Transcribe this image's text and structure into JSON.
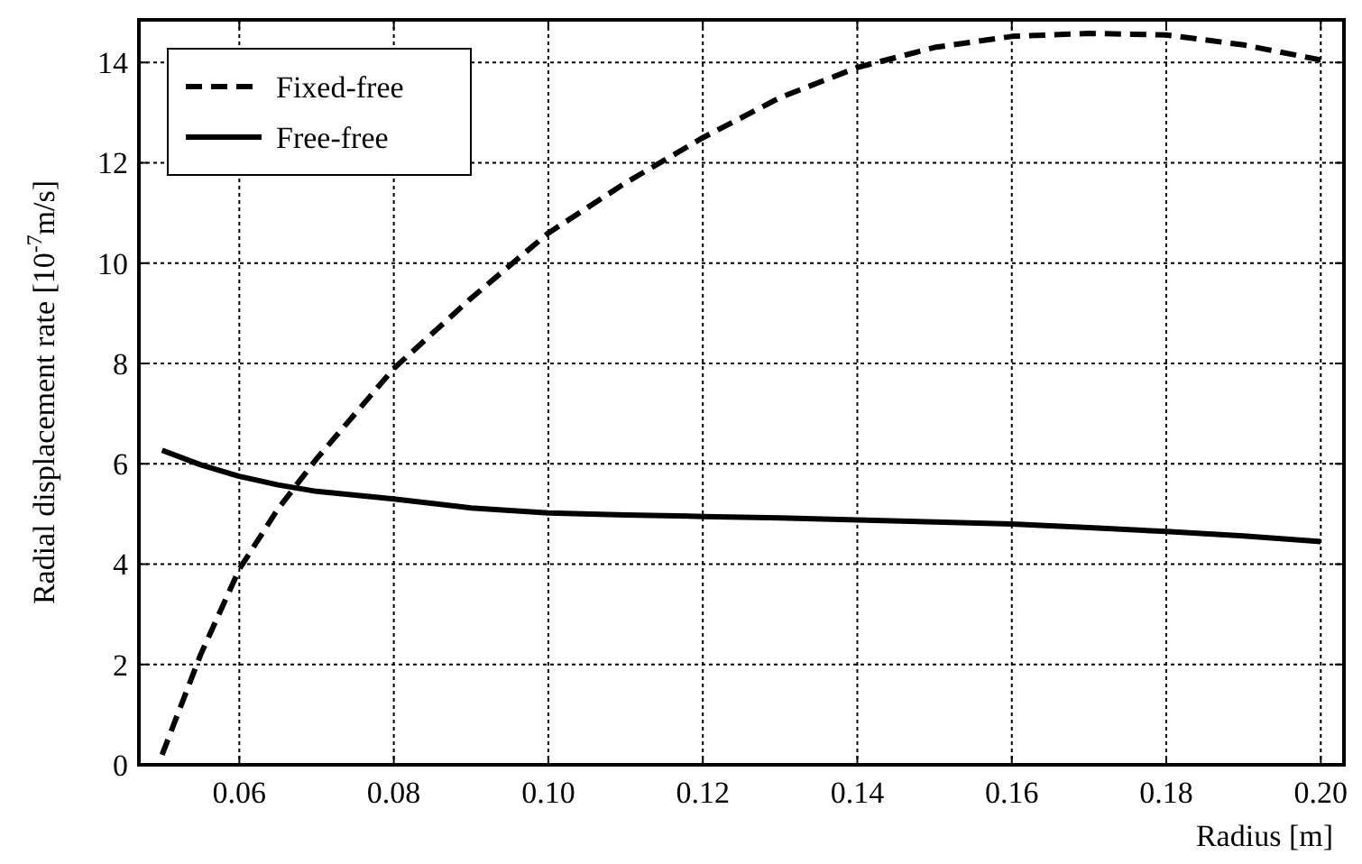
{
  "chart_data": {
    "type": "line",
    "xlabel": "Radius [m]",
    "ylabel": "Radial displacement rate [10$^{-7}$m/s]",
    "xlim": [
      0.047,
      0.203
    ],
    "ylim": [
      0,
      14.85
    ],
    "xticks": [
      {
        "value": 0.06,
        "label": "0.06"
      },
      {
        "value": 0.08,
        "label": "0.08"
      },
      {
        "value": 0.1,
        "label": "0.10"
      },
      {
        "value": 0.12,
        "label": "0.12"
      },
      {
        "value": 0.14,
        "label": "0.14"
      },
      {
        "value": 0.16,
        "label": "0.16"
      },
      {
        "value": 0.18,
        "label": "0.18"
      },
      {
        "value": 0.2,
        "label": "0.20"
      }
    ],
    "yticks": [
      0,
      2,
      4,
      6,
      8,
      10,
      12,
      14
    ],
    "x": [
      0.05,
      0.055,
      0.06,
      0.065,
      0.07,
      0.08,
      0.09,
      0.1,
      0.11,
      0.12,
      0.13,
      0.14,
      0.15,
      0.16,
      0.17,
      0.18,
      0.19,
      0.2
    ],
    "series": [
      {
        "name": "Fixed-free",
        "color": "#000000",
        "line_style": "dashed",
        "values": [
          0.2,
          2.2,
          3.9,
          5.1,
          6.1,
          7.9,
          9.3,
          10.6,
          11.6,
          12.5,
          13.3,
          13.9,
          14.3,
          14.52,
          14.58,
          14.55,
          14.35,
          14.05
        ]
      },
      {
        "name": "Free-free",
        "color": "#000000",
        "line_style": "solid",
        "values": [
          6.27,
          5.98,
          5.75,
          5.58,
          5.45,
          5.3,
          5.12,
          5.02,
          4.98,
          4.95,
          4.92,
          4.88,
          4.84,
          4.8,
          4.73,
          4.65,
          4.56,
          4.45
        ]
      }
    ],
    "grid": true,
    "legend": "top left",
    "marker": "none"
  }
}
